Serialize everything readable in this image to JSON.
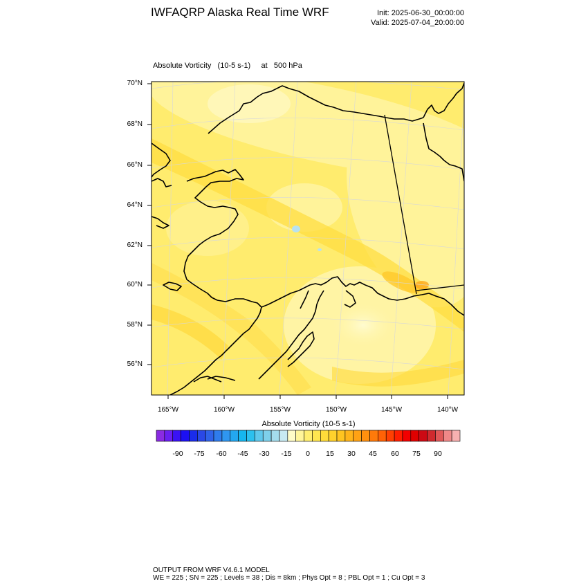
{
  "header": {
    "title": "IWFAQRP Alaska Real Time WRF",
    "init": "Init: 2025-06-30_00:00:00",
    "valid": "Valid: 2025-07-04_20:00:00"
  },
  "plot": {
    "subtitle": "Absolute Vorticity   (10-5 s-1)     at   500 hPa",
    "lat_labels": [
      "70°N",
      "68°N",
      "66°N",
      "64°N",
      "62°N",
      "60°N",
      "58°N",
      "56°N"
    ],
    "lon_labels": [
      "165°W",
      "160°W",
      "155°W",
      "150°W",
      "145°W",
      "140°W"
    ]
  },
  "colorbar": {
    "title": "Absolute Vorticity  (10-5 s-1)",
    "labels": [
      "-90",
      "-75",
      "-60",
      "-45",
      "-30",
      "-15",
      "0",
      "15",
      "30",
      "45",
      "60",
      "75",
      "90"
    ],
    "colors": [
      "#8a2be2",
      "#6a1ff0",
      "#3a12f5",
      "#1c10f2",
      "#1a2ceb",
      "#2a48e6",
      "#2f62e8",
      "#2f7cec",
      "#2f96f0",
      "#23a8f0",
      "#16b6ee",
      "#2cc0ee",
      "#5fc8ec",
      "#7ed0ea",
      "#a4dcec",
      "#c8eaf2",
      "#fffcc8",
      "#fff59a",
      "#ffee70",
      "#ffe650",
      "#ffdc3a",
      "#ffd12c",
      "#ffc420",
      "#ffb41a",
      "#ffa214",
      "#ff900e",
      "#ff7a0a",
      "#ff6206",
      "#ff4002",
      "#ff1e00",
      "#f20000",
      "#e00000",
      "#cc0a14",
      "#d02a2e",
      "#e05858",
      "#f08888",
      "#f8b0b0"
    ]
  },
  "footer": {
    "line1": "OUTPUT FROM WRF V4.6.1 MODEL",
    "line2": "WE = 225 ; SN = 225 ; Levels = 38 ; Dis = 8km ; Phys Opt = 8 ; PBL Opt = 1 ; Cu Opt = 3"
  }
}
